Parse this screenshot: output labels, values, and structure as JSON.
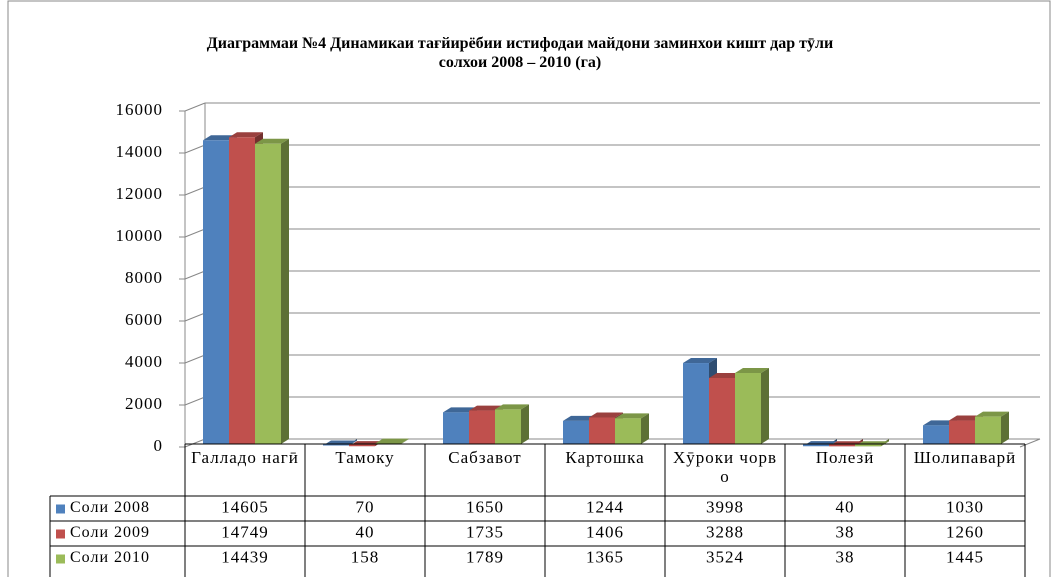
{
  "chart_data": {
    "type": "bar",
    "title": "Диаграммаи №4 Динамикаи тағйирёбии истифодаи майдони заминхои кишт дар тӯли солхои 2008 – 2010 (га)",
    "categories": [
      "Галладо нагӣ",
      "Тамоку",
      "Сабзавот",
      "Картошка",
      "Хӯроки чорво",
      "Полезӣ",
      "Шолипаварӣ"
    ],
    "series": [
      {
        "name": "Соли 2008",
        "color": "#4f81bd",
        "values": [
          14605,
          70,
          1650,
          1244,
          3998,
          40,
          1030
        ]
      },
      {
        "name": "Соли 2009",
        "color": "#c0504d",
        "values": [
          14749,
          40,
          1735,
          1406,
          3288,
          38,
          1260
        ]
      },
      {
        "name": "Соли 2010",
        "color": "#9bbb59",
        "values": [
          14439,
          158,
          1789,
          1365,
          3524,
          38,
          1445
        ]
      }
    ],
    "ylim": [
      0,
      16000
    ],
    "yticks": [
      0,
      2000,
      4000,
      6000,
      8000,
      10000,
      12000,
      14000,
      16000
    ],
    "grid": true
  }
}
